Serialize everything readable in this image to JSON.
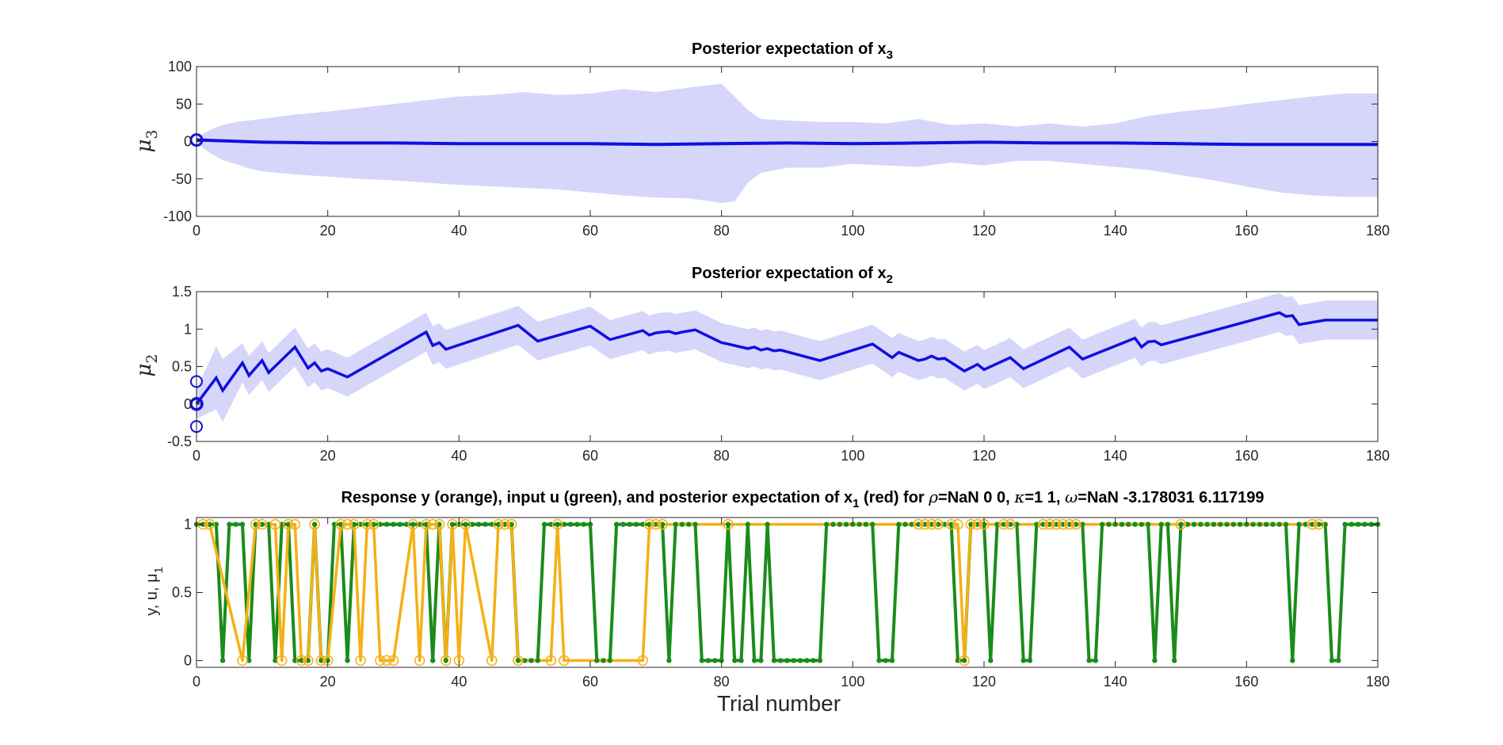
{
  "colors": {
    "mu_line": "#1010e0",
    "band": "#d6d6fb",
    "input_u": "#1a8c1a",
    "response_y": "#f5b014",
    "axis": "#262626"
  },
  "chart_data": [
    {
      "type": "area",
      "title": "Posterior expectation of x",
      "title_sub": "3",
      "ylabel": "μ",
      "ylabel_sub": "3",
      "xlim": [
        0,
        180
      ],
      "ylim": [
        -100,
        100
      ],
      "xticks": [
        "0",
        "20",
        "40",
        "60",
        "80",
        "100",
        "120",
        "140",
        "160",
        "180"
      ],
      "yticks": [
        "100",
        "50",
        "0",
        "-50",
        "-100"
      ],
      "ytick_values": [
        100,
        50,
        0,
        -50,
        -100
      ],
      "prior_markers": [
        {
          "x": 0,
          "y": 2
        }
      ],
      "band_x": [
        0,
        2,
        4,
        6,
        8,
        10,
        15,
        20,
        25,
        30,
        35,
        40,
        45,
        50,
        55,
        60,
        65,
        70,
        75,
        80,
        82,
        84,
        86,
        90,
        95,
        100,
        105,
        110,
        115,
        120,
        125,
        130,
        135,
        140,
        145,
        150,
        155,
        160,
        165,
        170,
        175,
        180
      ],
      "band_upper": [
        5,
        15,
        22,
        26,
        28,
        30,
        36,
        40,
        45,
        50,
        55,
        60,
        62,
        66,
        62,
        64,
        70,
        66,
        72,
        77,
        60,
        42,
        30,
        28,
        26,
        26,
        24,
        30,
        22,
        24,
        20,
        24,
        20,
        24,
        34,
        40,
        44,
        50,
        55,
        60,
        64,
        64
      ],
      "band_lower": [
        -2,
        -15,
        -25,
        -30,
        -36,
        -40,
        -44,
        -47,
        -50,
        -52,
        -55,
        -58,
        -60,
        -62,
        -64,
        -68,
        -72,
        -75,
        -76,
        -82,
        -80,
        -55,
        -42,
        -35,
        -35,
        -30,
        -32,
        -34,
        -28,
        -32,
        -26,
        -26,
        -30,
        -34,
        -38,
        -45,
        -52,
        -60,
        -68,
        -72,
        -74,
        -74
      ],
      "line_x": [
        0,
        10,
        20,
        30,
        40,
        50,
        60,
        70,
        80,
        90,
        100,
        110,
        120,
        130,
        140,
        150,
        160,
        170,
        180
      ],
      "line_y": [
        2,
        -1,
        -2,
        -2,
        -3,
        -3,
        -3,
        -4,
        -3,
        -2,
        -3,
        -2,
        -1,
        -2,
        -2,
        -3,
        -4,
        -4,
        -4
      ]
    },
    {
      "type": "area",
      "title": "Posterior expectation of x",
      "title_sub": "2",
      "ylabel": "μ",
      "ylabel_sub": "2",
      "xlim": [
        0,
        180
      ],
      "ylim": [
        -0.5,
        1.5
      ],
      "xticks": [
        "0",
        "20",
        "40",
        "60",
        "80",
        "100",
        "120",
        "140",
        "160",
        "180"
      ],
      "yticks": [
        "1.5",
        "1",
        "0.5",
        "0",
        "-0.5"
      ],
      "ytick_values": [
        1.5,
        1,
        0.5,
        0,
        -0.5
      ],
      "prior_markers": [
        {
          "x": 0,
          "y": 0.3
        },
        {
          "x": 0,
          "y": 0
        },
        {
          "x": 0,
          "y": -0.3
        }
      ],
      "mu_x": [
        0,
        3,
        4,
        7,
        8,
        10,
        11,
        15,
        17,
        18,
        19,
        20,
        23,
        35,
        36,
        37,
        38,
        49,
        52,
        60,
        63,
        68,
        69,
        70,
        71,
        72,
        73,
        74,
        76,
        80,
        81,
        82,
        84,
        85,
        86,
        87,
        88,
        89,
        95,
        103,
        106,
        107,
        110,
        111,
        112,
        113,
        114,
        117,
        119,
        120,
        124,
        126,
        133,
        135,
        143,
        144,
        145,
        146,
        147,
        165,
        166,
        167,
        168,
        170,
        172,
        180
      ],
      "mu_y": [
        0,
        0.35,
        0.18,
        0.55,
        0.38,
        0.58,
        0.42,
        0.76,
        0.48,
        0.55,
        0.44,
        0.47,
        0.36,
        0.96,
        0.78,
        0.82,
        0.73,
        1.05,
        0.84,
        1.04,
        0.86,
        0.98,
        0.92,
        0.95,
        0.96,
        0.97,
        0.94,
        0.96,
        0.99,
        0.82,
        0.8,
        0.78,
        0.74,
        0.76,
        0.72,
        0.74,
        0.71,
        0.72,
        0.58,
        0.8,
        0.62,
        0.69,
        0.58,
        0.6,
        0.64,
        0.6,
        0.61,
        0.44,
        0.53,
        0.46,
        0.62,
        0.47,
        0.76,
        0.6,
        0.88,
        0.76,
        0.83,
        0.84,
        0.79,
        1.22,
        1.17,
        1.18,
        1.06,
        1.09,
        1.12,
        1.12
      ],
      "band_half": 0.26,
      "band_half_start": 0.42
    },
    {
      "type": "line",
      "title_parts": {
        "prefix": "Response y (orange), input u (green), and posterior expectation of x",
        "x_sub": "1",
        "mid": " (red) for ",
        "rho_sym": "ρ",
        "rho_val": "=NaN    0    0, ",
        "kappa_sym": "κ",
        "kappa_val": "=1  1, ",
        "omega_sym": "ω",
        "omega_val": "=NaN     -3.178031      6.117199"
      },
      "ylabel": "y, u, μ",
      "ylabel_sub": "1",
      "xlabel": "Trial number",
      "xlim": [
        0,
        180
      ],
      "ylim": [
        -0.05,
        1.05
      ],
      "xticks": [
        "0",
        "20",
        "40",
        "60",
        "80",
        "100",
        "120",
        "140",
        "160",
        "180"
      ],
      "yticks": [
        "1",
        "0.5",
        "0"
      ],
      "ytick_values": [
        1,
        0.5,
        0
      ],
      "series": [
        {
          "name": "input u",
          "values": [
            1,
            1,
            1,
            1,
            0,
            1,
            1,
            1,
            0,
            1,
            1,
            1,
            0,
            1,
            1,
            0,
            0,
            0,
            1,
            0,
            0,
            1,
            1,
            0,
            1,
            1,
            1,
            1,
            1,
            1,
            1,
            1,
            1,
            1,
            1,
            1,
            0,
            1,
            0,
            1,
            1,
            1,
            1,
            1,
            1,
            1,
            1,
            1,
            1,
            0,
            0,
            0,
            0,
            1,
            1,
            1,
            1,
            1,
            1,
            1,
            1,
            0,
            0,
            0,
            1,
            1,
            1,
            1,
            1,
            1,
            1,
            1,
            0,
            1,
            1,
            1,
            1,
            0,
            0,
            0,
            0,
            1,
            0,
            0,
            1,
            0,
            0,
            1,
            0,
            0,
            0,
            0,
            0,
            0,
            0,
            0,
            1,
            1,
            1,
            1,
            1,
            1,
            1,
            1,
            0,
            0,
            0,
            1,
            1,
            1,
            1,
            1,
            1,
            1,
            1,
            1,
            0,
            0,
            1,
            1,
            1,
            0,
            1,
            1,
            1,
            1,
            0,
            0,
            1,
            1,
            1,
            1,
            1,
            1,
            1,
            1,
            0,
            0,
            1,
            1,
            1,
            1,
            1,
            1,
            1,
            1,
            0,
            1,
            1,
            0,
            1,
            1,
            1,
            1,
            1,
            1,
            1,
            1,
            1,
            1,
            1,
            1,
            1,
            1,
            1,
            1,
            1,
            0,
            1,
            1,
            1,
            1,
            1,
            0,
            0,
            1,
            1,
            1,
            1,
            1,
            1
          ]
        },
        {
          "name": "response y",
          "x": [
            1,
            2,
            7,
            9,
            10,
            12,
            13,
            14,
            15,
            16,
            17,
            18,
            19,
            20,
            22,
            23,
            24,
            25,
            26,
            27,
            28,
            29,
            30,
            33,
            34,
            35,
            36,
            37,
            38,
            39,
            40,
            41,
            45,
            46,
            47,
            48,
            49,
            54,
            55,
            56,
            68,
            69,
            70,
            71,
            81,
            110,
            111,
            112,
            113,
            115,
            116,
            117,
            118,
            119,
            120,
            123,
            124,
            129,
            130,
            131,
            132,
            133,
            134,
            150,
            170,
            171
          ],
          "values": [
            1,
            1,
            0,
            1,
            1,
            1,
            0,
            1,
            1,
            0,
            0,
            1,
            0,
            0,
            1,
            1,
            1,
            0,
            1,
            1,
            0,
            0,
            0,
            1,
            0,
            1,
            1,
            1,
            0,
            1,
            0,
            1,
            0,
            1,
            1,
            1,
            0,
            0,
            1,
            0,
            0,
            1,
            1,
            1,
            1,
            1,
            1,
            1,
            1,
            1,
            1,
            0,
            1,
            1,
            1,
            1,
            1,
            1,
            1,
            1,
            1,
            1,
            1,
            1,
            1,
            1
          ]
        }
      ]
    }
  ]
}
